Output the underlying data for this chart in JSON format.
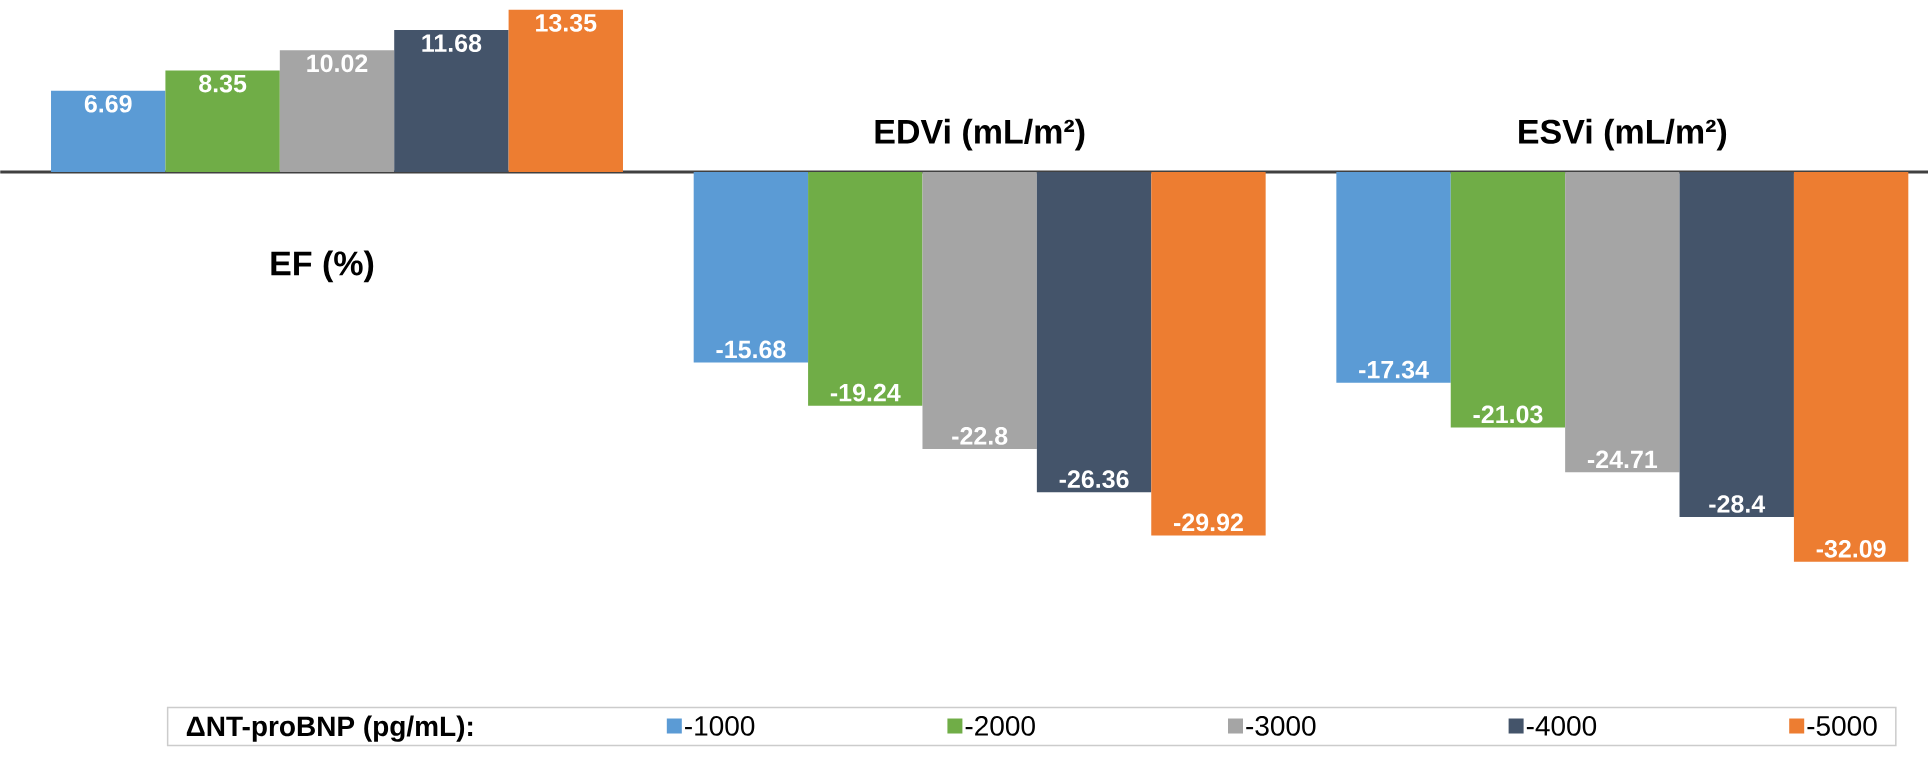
{
  "chart_data": {
    "type": "bar",
    "categories": [
      "EF (%)",
      "EDVi (mL/m²)",
      "ESVi (mL/m²)"
    ],
    "legend_title": "ΔNT-proBNP (pg/mL):",
    "legend": "bottom",
    "data_labels": true,
    "series": [
      {
        "name": "-1000",
        "color": "#5b9bd5",
        "values": [
          6.69,
          -15.68,
          -17.34
        ]
      },
      {
        "name": "-2000",
        "color": "#70ad47",
        "values": [
          8.35,
          -19.24,
          -21.03
        ]
      },
      {
        "name": "-3000",
        "color": "#a5a5a5",
        "values": [
          10.02,
          -22.8,
          -24.71
        ]
      },
      {
        "name": "-4000",
        "color": "#44546a",
        "values": [
          11.68,
          -26.36,
          -28.4
        ]
      },
      {
        "name": "-5000",
        "color": "#ed7d31",
        "values": [
          13.35,
          -29.92,
          -32.09
        ]
      }
    ]
  }
}
